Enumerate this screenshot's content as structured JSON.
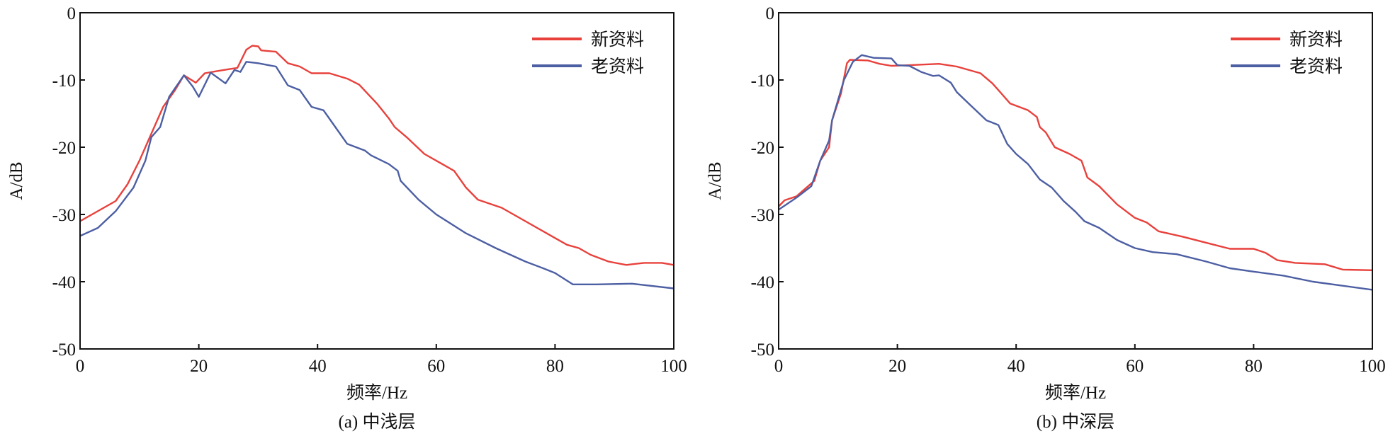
{
  "colors": {
    "new": "#e8413c",
    "old": "#4d5fa3",
    "axis": "#111111"
  },
  "chart_data": [
    {
      "type": "line",
      "caption": "(a) 中浅层",
      "xlabel": "频率/Hz",
      "ylabel": "A/dB",
      "xlim": [
        0,
        100
      ],
      "ylim": [
        -50,
        0
      ],
      "xticks": [
        "0",
        "20",
        "40",
        "60",
        "80",
        "100"
      ],
      "yticks": [
        "0",
        "-10",
        "-20",
        "-30",
        "-40",
        "-50"
      ],
      "legend_position": "top-right",
      "grid": false,
      "series": [
        {
          "name": "新资料",
          "color_key": "new",
          "x": [
            0,
            2,
            4,
            6,
            8,
            10,
            11,
            13,
            14,
            16,
            17.5,
            19.5,
            21,
            23,
            25,
            26.5,
            28,
            29,
            30,
            30.5,
            33,
            35,
            37,
            39,
            42,
            45,
            47,
            50,
            52,
            53,
            55,
            58,
            61,
            63,
            65,
            67,
            71,
            75,
            80,
            82,
            84,
            86,
            89,
            92,
            95,
            98,
            100
          ],
          "y": [
            -31,
            -30,
            -29,
            -28,
            -25.5,
            -22,
            -20,
            -16,
            -14,
            -11.5,
            -9.3,
            -10.4,
            -9,
            -8.7,
            -8.4,
            -8.2,
            -5.5,
            -4.9,
            -5,
            -5.6,
            -5.8,
            -7.5,
            -8,
            -9,
            -9,
            -9.8,
            -10.7,
            -13.5,
            -15.7,
            -17,
            -18.5,
            -21,
            -22.5,
            -23.5,
            -26,
            -27.8,
            -29,
            -31,
            -33.5,
            -34.5,
            -35,
            -36,
            -37,
            -37.5,
            -37.2,
            -37.2,
            -37.5
          ]
        },
        {
          "name": "老资料",
          "color_key": "old",
          "x": [
            0,
            3,
            6,
            9,
            11,
            12,
            13.5,
            15,
            17.5,
            19,
            20,
            22,
            24.5,
            26,
            27,
            28,
            30,
            33,
            35,
            37,
            39,
            41,
            43,
            45,
            48,
            49,
            52,
            53.5,
            54,
            57,
            60,
            65,
            70,
            75,
            78,
            80,
            83,
            87,
            93,
            100
          ],
          "y": [
            -33.2,
            -32,
            -29.5,
            -26,
            -22,
            -18.5,
            -17,
            -12.5,
            -9.3,
            -11,
            -12.5,
            -8.9,
            -10.5,
            -8.5,
            -8.8,
            -7.3,
            -7.5,
            -8,
            -10.8,
            -11.5,
            -14,
            -14.5,
            -17,
            -19.5,
            -20.5,
            -21.2,
            -22.5,
            -23.5,
            -25,
            -27.8,
            -30,
            -32.8,
            -35,
            -37,
            -38,
            -38.7,
            -40.4,
            -40.4,
            -40.3,
            -41
          ]
        }
      ]
    },
    {
      "type": "line",
      "caption": "(b) 中深层",
      "xlabel": "频率/Hz",
      "ylabel": "A/dB",
      "xlim": [
        0,
        100
      ],
      "ylim": [
        -50,
        0
      ],
      "xticks": [
        "0",
        "20",
        "40",
        "60",
        "80",
        "100"
      ],
      "yticks": [
        "0",
        "-10",
        "-20",
        "-30",
        "-40",
        "-50"
      ],
      "legend_position": "top-right",
      "grid": false,
      "series": [
        {
          "name": "新资料",
          "color_key": "new",
          "x": [
            0,
            1,
            3,
            6,
            7,
            8.5,
            9,
            10.5,
            11.5,
            12,
            15,
            17,
            19,
            22,
            27,
            30,
            34,
            36,
            37.5,
            39,
            42,
            43.5,
            44,
            45,
            46.5,
            49,
            51,
            52,
            54,
            57,
            60,
            62,
            64,
            68,
            72,
            76,
            80,
            82,
            84,
            87,
            92,
            95,
            100
          ],
          "y": [
            -28.8,
            -27.9,
            -27.3,
            -25,
            -22,
            -20,
            -16,
            -12,
            -7.5,
            -7,
            -7.1,
            -7.6,
            -7.9,
            -7.8,
            -7.6,
            -8,
            -9,
            -10.5,
            -12,
            -13.5,
            -14.5,
            -15.5,
            -17,
            -17.8,
            -20,
            -21,
            -22,
            -24.5,
            -25.8,
            -28.5,
            -30.5,
            -31.2,
            -32.5,
            -33.3,
            -34.2,
            -35.1,
            -35.1,
            -35.7,
            -36.8,
            -37.2,
            -37.4,
            -38.2,
            -38.3
          ]
        },
        {
          "name": "老资料",
          "color_key": "old",
          "x": [
            0,
            3,
            5.5,
            7,
            8.5,
            9,
            11,
            12.5,
            14,
            16,
            19,
            20,
            22,
            24,
            26,
            27,
            29,
            30,
            32,
            35,
            37,
            38.5,
            40,
            42,
            44,
            46,
            48,
            50,
            51.5,
            54,
            57,
            60,
            63,
            67,
            72,
            76,
            80,
            85,
            90,
            100
          ],
          "y": [
            -29.3,
            -27.5,
            -25.8,
            -22,
            -19,
            -16,
            -10,
            -7.3,
            -6.3,
            -6.7,
            -6.8,
            -7.8,
            -7.9,
            -8.8,
            -9.4,
            -9.3,
            -10.4,
            -11.8,
            -13.5,
            -16,
            -16.7,
            -19.5,
            -21,
            -22.5,
            -24.8,
            -26,
            -28,
            -29.6,
            -31,
            -32,
            -33.8,
            -35,
            -35.6,
            -35.9,
            -37,
            -38,
            -38.5,
            -39.1,
            -40,
            -41.2
          ]
        }
      ]
    }
  ]
}
